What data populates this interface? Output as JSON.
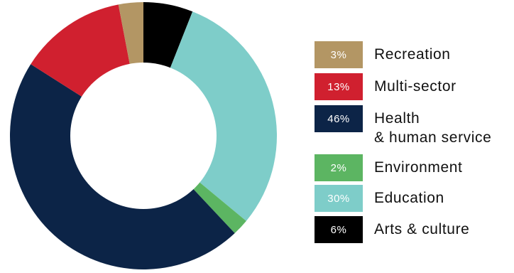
{
  "chart_data": {
    "type": "pie",
    "donut": true,
    "title": "",
    "legend_position": "right",
    "slices": [
      {
        "label": "Recreation",
        "value": 3,
        "value_label": "3%",
        "color": "#b39664"
      },
      {
        "label": "Multi-sector",
        "value": 13,
        "value_label": "13%",
        "color": "#d0202f"
      },
      {
        "label": "Health\n& human service",
        "value": 46,
        "value_label": "46%",
        "color": "#0c2447"
      },
      {
        "label": "Environment",
        "value": 2,
        "value_label": "2%",
        "color": "#5cb562"
      },
      {
        "label": "Education",
        "value": 30,
        "value_label": "30%",
        "color": "#7ecdc9"
      },
      {
        "label": "Arts & culture",
        "value": 6,
        "value_label": "6%",
        "color": "#000000"
      }
    ],
    "ring_order": [
      "Arts & culture",
      "Education",
      "Environment",
      "Health\n& human service",
      "Multi-sector",
      "Recreation"
    ]
  }
}
